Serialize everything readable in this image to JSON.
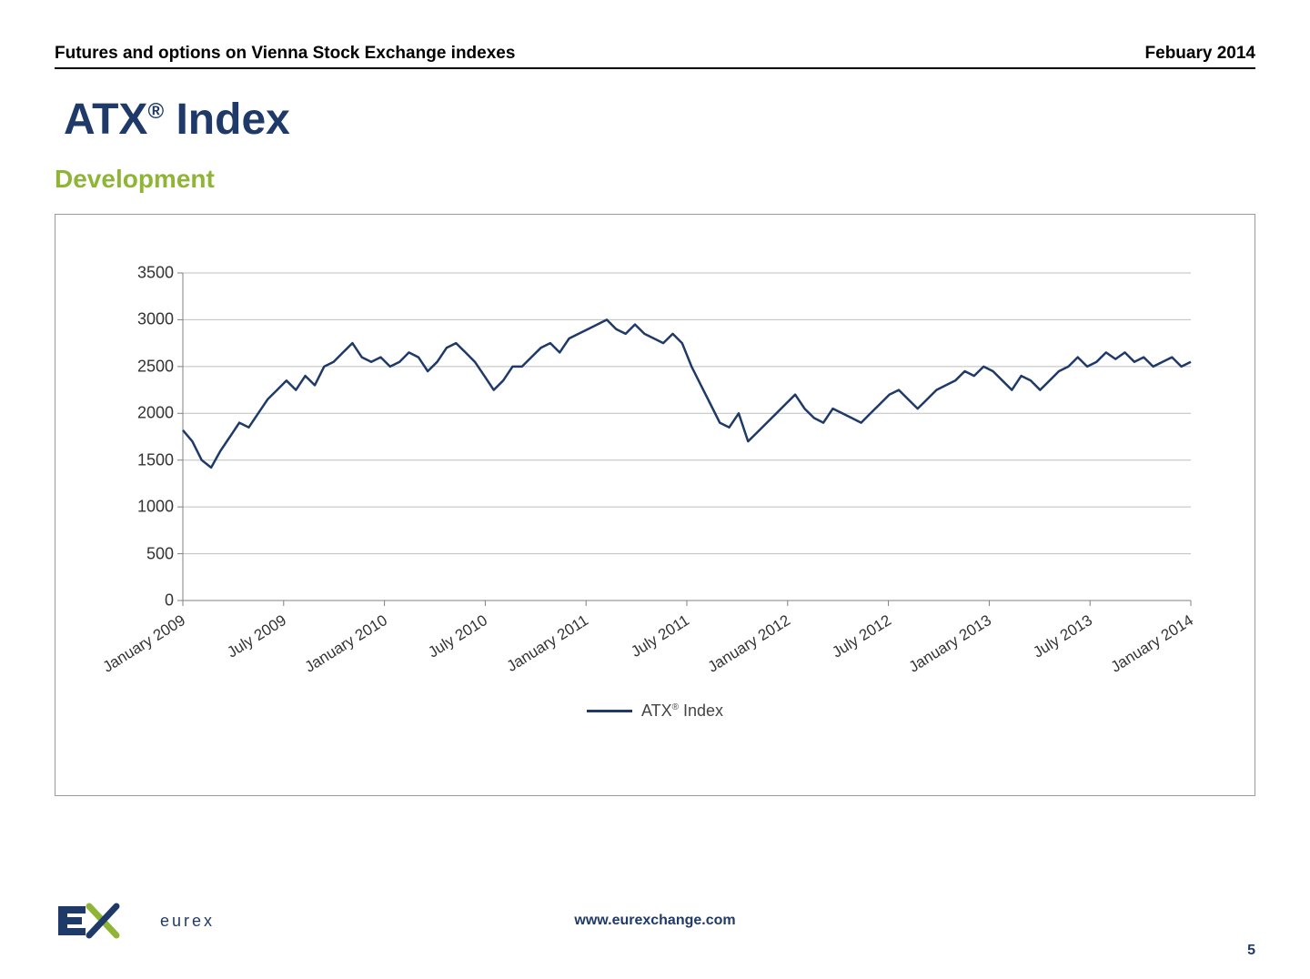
{
  "header": {
    "left": "Futures and options on Vienna Stock Exchange indexes",
    "right": "Febuary 2014"
  },
  "title_main": "ATX",
  "title_sup": "®",
  "title_suffix": " Index",
  "subtitle": "Development",
  "chart": {
    "type": "line",
    "series_name": "ATX® Index",
    "line_color": "#1f3a68",
    "line_width": 2.5,
    "background_color": "#ffffff",
    "grid_color": "#bfbfbf",
    "axis_color": "#808080",
    "tick_font_size": 18,
    "ylim": [
      0,
      3500
    ],
    "ytick_step": 500,
    "yticks": [
      0,
      500,
      1000,
      1500,
      2000,
      2500,
      3000,
      3500
    ],
    "x_labels": [
      "January 2009",
      "July 2009",
      "January 2010",
      "July 2010",
      "January 2011",
      "July 2011",
      "January 2012",
      "July 2012",
      "January 2013",
      "July 2013",
      "January 2014"
    ],
    "x_label_rotation_deg": -32,
    "values": [
      1820,
      1700,
      1500,
      1420,
      1600,
      1750,
      1900,
      1850,
      2000,
      2150,
      2250,
      2350,
      2250,
      2400,
      2300,
      2500,
      2550,
      2650,
      2750,
      2600,
      2550,
      2600,
      2500,
      2550,
      2650,
      2600,
      2450,
      2550,
      2700,
      2750,
      2650,
      2550,
      2400,
      2250,
      2350,
      2500,
      2500,
      2600,
      2700,
      2750,
      2650,
      2800,
      2850,
      2900,
      2950,
      3000,
      2900,
      2850,
      2950,
      2850,
      2800,
      2750,
      2850,
      2750,
      2500,
      2300,
      2100,
      1900,
      1850,
      2000,
      1700,
      1800,
      1900,
      2000,
      2100,
      2200,
      2050,
      1950,
      1900,
      2050,
      2000,
      1950,
      1900,
      2000,
      2100,
      2200,
      2250,
      2150,
      2050,
      2150,
      2250,
      2300,
      2350,
      2450,
      2400,
      2500,
      2450,
      2350,
      2250,
      2400,
      2350,
      2250,
      2350,
      2450,
      2500,
      2600,
      2500,
      2550,
      2650,
      2580,
      2650,
      2550,
      2600,
      2500,
      2550,
      2600,
      2500,
      2550
    ]
  },
  "legend_label": "ATX® Index",
  "footer": {
    "logo_text": "eurex",
    "url": "www.eurexchange.com",
    "page_number": "5"
  },
  "colors": {
    "title": "#1f3a68",
    "subtitle": "#8fb536",
    "text": "#000000"
  }
}
